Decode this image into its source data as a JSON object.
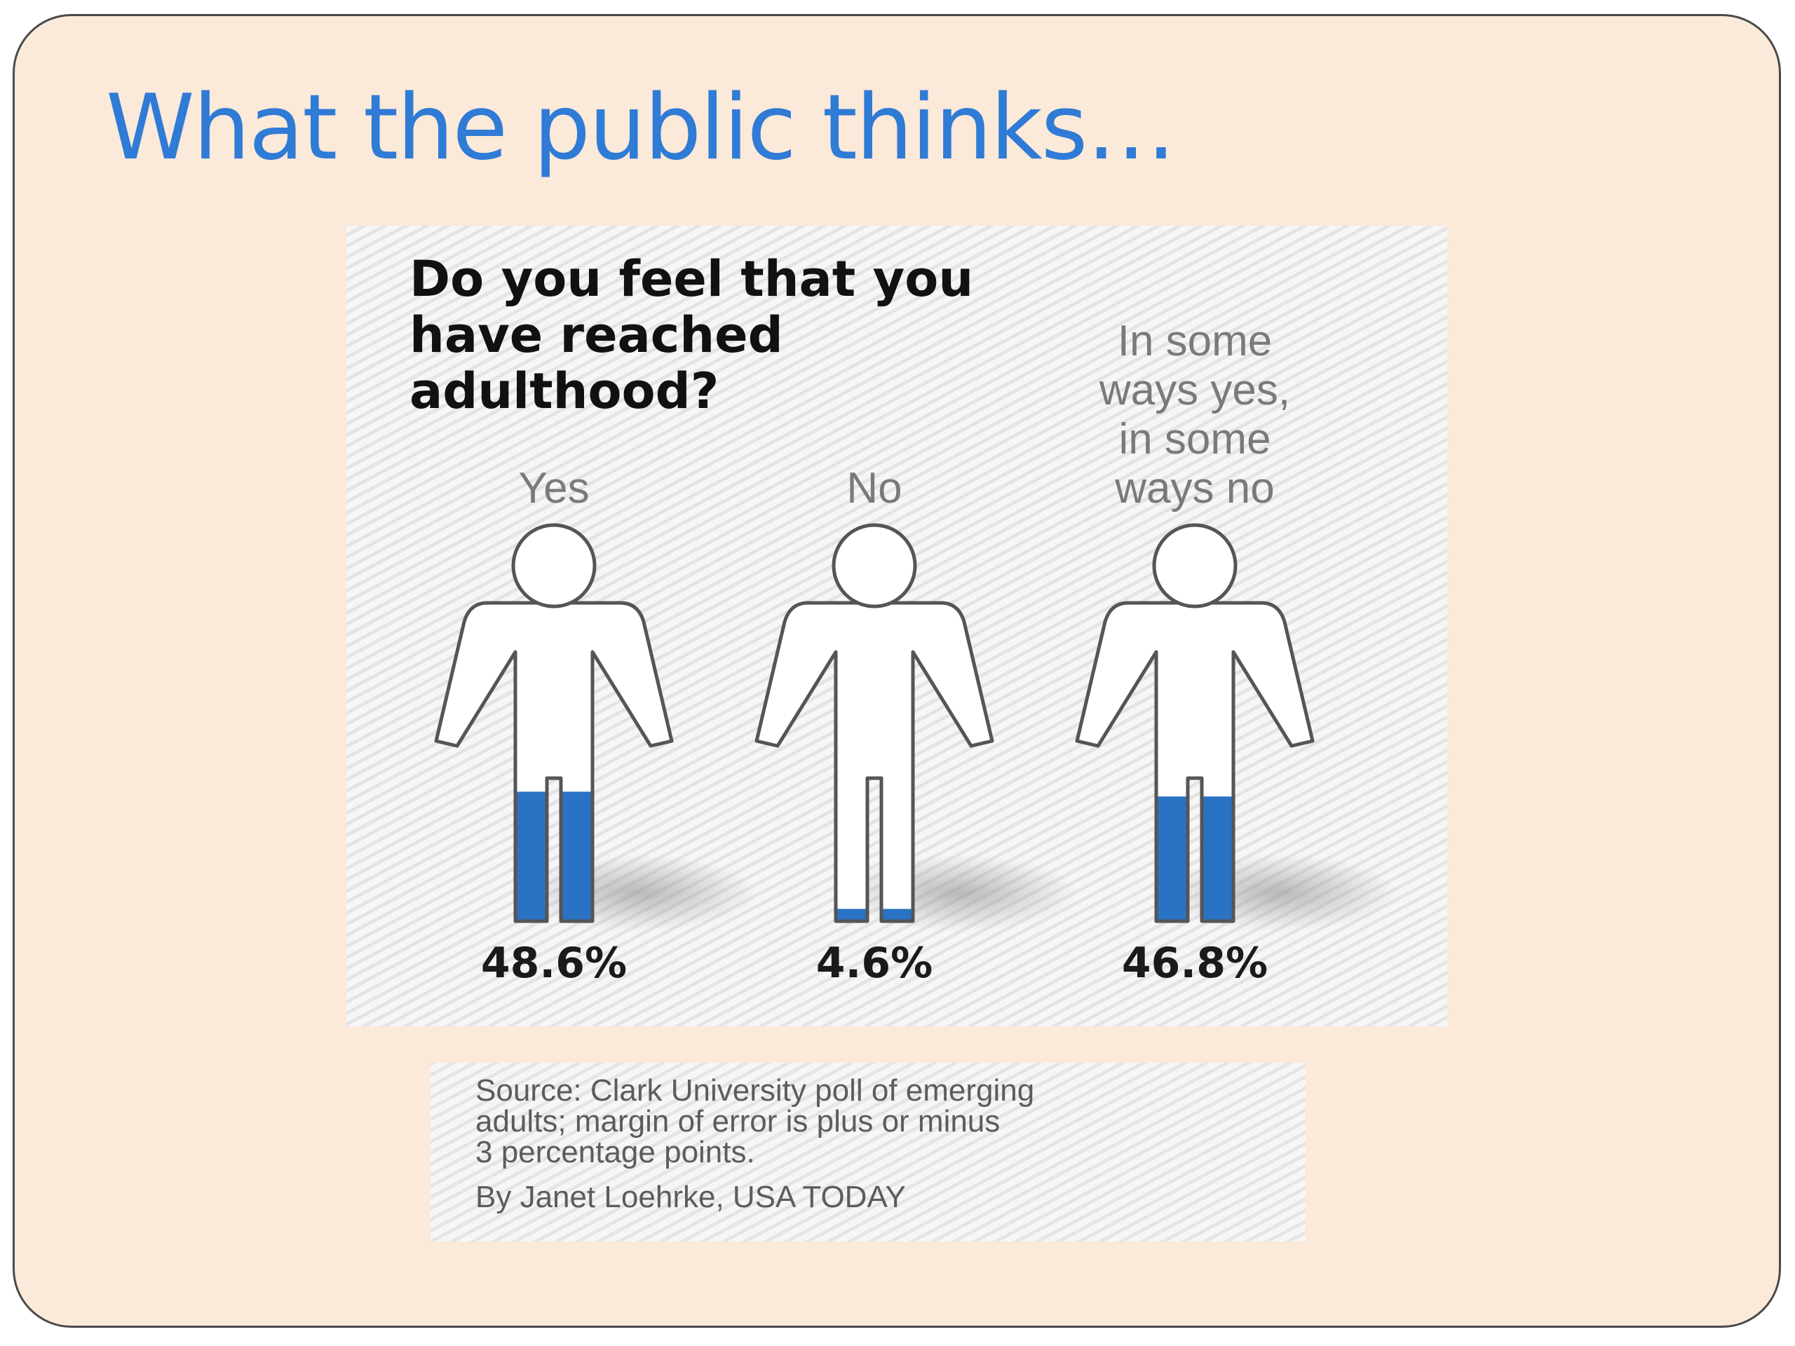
{
  "slide": {
    "title": "What the public thinks…"
  },
  "chart_data": {
    "type": "pictograph",
    "title": "Do you feel that you have reached adulthood?",
    "title_lines": [
      "Do you feel that you",
      "have reached",
      "adulthood?"
    ],
    "categories": [
      "Yes",
      "No",
      "In some ways yes, in some ways no"
    ],
    "category_lines": [
      [
        "Yes"
      ],
      [
        "No"
      ],
      [
        "In some",
        "ways yes,",
        "in some",
        "ways no"
      ]
    ],
    "values": [
      48.6,
      4.6,
      46.8
    ],
    "value_labels": [
      "48.6%",
      "4.6%",
      "46.8%"
    ],
    "unit": "%",
    "fill_color": "#2a72c4",
    "outline_color": "#555555"
  },
  "footer": {
    "source": "Source: Clark University poll of emerging\nadults; margin of error is plus or minus\n3 percentage points.",
    "credit": "By Janet Loehrke, USA TODAY"
  }
}
